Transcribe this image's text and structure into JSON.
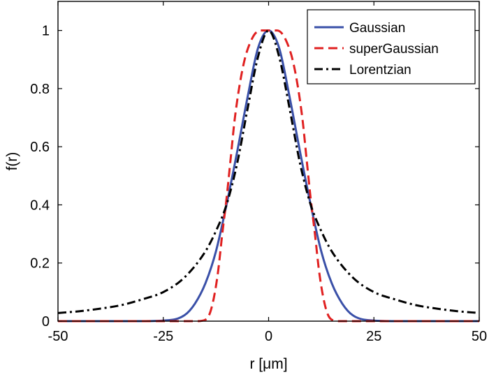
{
  "chart_data": {
    "type": "line",
    "xlabel": "r [μm]",
    "ylabel": "f(r)",
    "xlim": [
      -50,
      50
    ],
    "ylim": [
      0,
      1.1
    ],
    "xticks": [
      -50,
      -25,
      0,
      25,
      50
    ],
    "xtick_labels": [
      "-50",
      "-25",
      "0",
      "25",
      "50"
    ],
    "yticks": [
      0,
      0.2,
      0.4,
      0.6,
      0.8,
      1
    ],
    "ytick_labels": [
      "0",
      "0.2",
      "0.4",
      "0.6",
      "0.8",
      "1"
    ],
    "grid": false,
    "legend_position": "top-right",
    "series": [
      {
        "name": "Gaussian",
        "color": "#3a50a8",
        "style": "solid",
        "x": [
          -50,
          -30,
          -25,
          -20,
          -17.5,
          -15,
          -12.5,
          -10,
          -7.5,
          -5,
          -2.5,
          0,
          2.5,
          5,
          7.5,
          10,
          12.5,
          15,
          17.5,
          20,
          25,
          30,
          50
        ],
        "y": [
          0,
          0,
          0.002,
          0.02,
          0.06,
          0.13,
          0.24,
          0.4,
          0.58,
          0.77,
          0.94,
          1,
          0.94,
          0.77,
          0.58,
          0.4,
          0.24,
          0.13,
          0.06,
          0.02,
          0.002,
          0,
          0
        ]
      },
      {
        "name": "superGaussian",
        "color": "#e02020",
        "style": "dashed",
        "x": [
          -50,
          -17,
          -15,
          -14,
          -13,
          -12,
          -11,
          -10,
          -9,
          -8,
          -6,
          -4,
          -2,
          0,
          2,
          4,
          6,
          8,
          9,
          10,
          11,
          12,
          13,
          14,
          15,
          17,
          50
        ],
        "y": [
          0,
          0,
          0.005,
          0.025,
          0.08,
          0.17,
          0.3,
          0.42,
          0.56,
          0.7,
          0.88,
          0.97,
          1,
          1,
          1,
          0.97,
          0.88,
          0.7,
          0.56,
          0.42,
          0.3,
          0.17,
          0.08,
          0.025,
          0.005,
          0,
          0
        ]
      },
      {
        "name": "Lorentzian",
        "color": "#000000",
        "style": "dashdot",
        "x": [
          -50,
          -45,
          -40,
          -35,
          -30,
          -25,
          -20,
          -15,
          -12.5,
          -10,
          -7.5,
          -5,
          -2.5,
          0,
          2.5,
          5,
          7.5,
          10,
          12.5,
          15,
          20,
          25,
          30,
          35,
          40,
          45,
          50
        ],
        "y": [
          0.028,
          0.034,
          0.043,
          0.055,
          0.075,
          0.1,
          0.15,
          0.24,
          0.31,
          0.4,
          0.54,
          0.73,
          0.91,
          1,
          0.91,
          0.73,
          0.54,
          0.4,
          0.31,
          0.24,
          0.15,
          0.1,
          0.075,
          0.055,
          0.043,
          0.034,
          0.028
        ]
      }
    ]
  }
}
